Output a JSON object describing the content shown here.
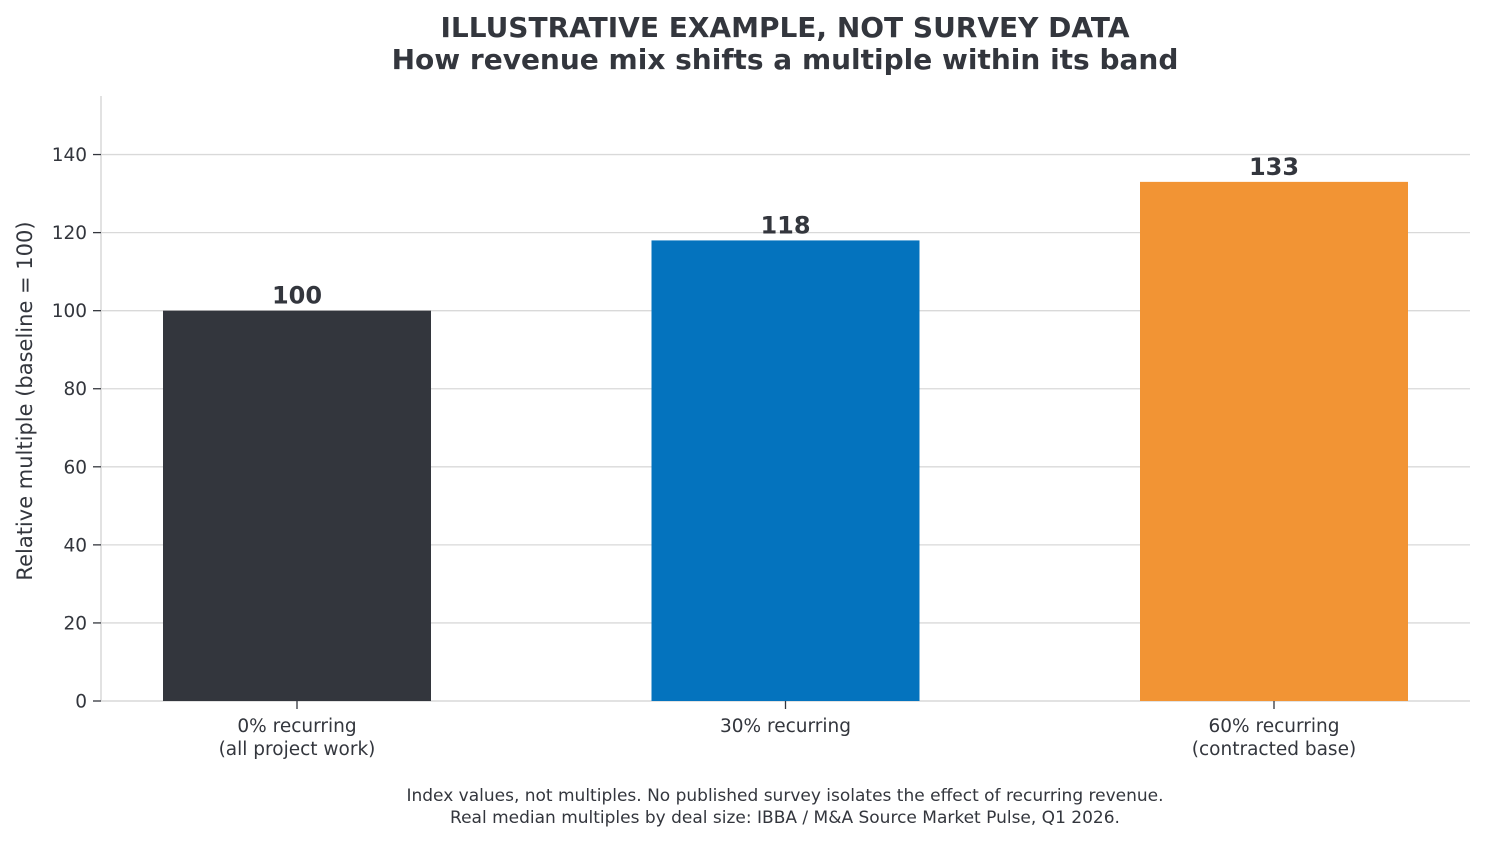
{
  "chart_data": {
    "type": "bar",
    "title": "ILLUSTRATIVE EXAMPLE, NOT SURVEY DATA",
    "subtitle": "How revenue mix shifts a multiple within its band",
    "xlabel": "",
    "ylabel": "Relative multiple (baseline = 100)",
    "ylim": [
      0,
      155
    ],
    "yticks": [
      0,
      20,
      40,
      60,
      80,
      100,
      120,
      140
    ],
    "grid": "horizontal",
    "categories": [
      [
        "0% recurring",
        "(all project work)"
      ],
      [
        "30% recurring"
      ],
      [
        "60% recurring",
        "(contracted base)"
      ]
    ],
    "values": [
      100,
      118,
      133
    ],
    "value_labels": [
      "100",
      "118",
      "133"
    ],
    "bar_colors": [
      "#33363d",
      "#0473be",
      "#f29434"
    ],
    "footnotes": [
      "Index values, not multiples. No published survey isolates the effect of recurring revenue.",
      "Real median multiples by deal size: IBBA / M&A Source Market Pulse, Q1 2026."
    ]
  },
  "colors": {
    "text": "#33363d",
    "grid": "#d9d9d9",
    "axis": "#d9d9d9",
    "background": "#ffffff"
  }
}
